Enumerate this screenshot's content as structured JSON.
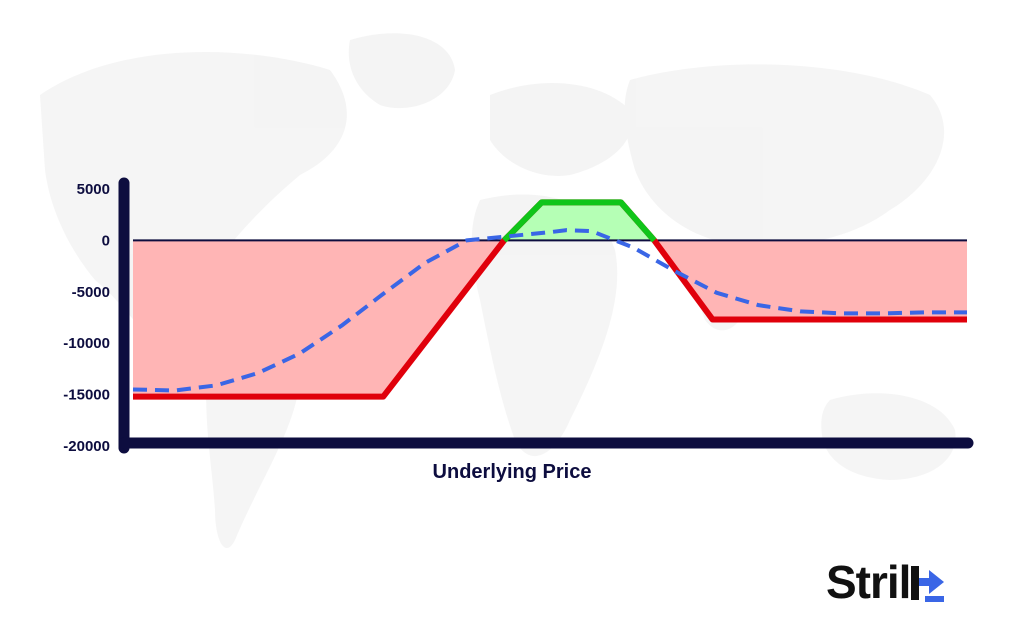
{
  "chart_data": {
    "type": "line",
    "title": "",
    "xlabel": "Underlying Price",
    "ylabel": "",
    "ylim": [
      -20000,
      5000
    ],
    "yticks": [
      5000,
      0,
      -5000,
      -10000,
      -15000,
      -20000
    ],
    "ytick_labels": [
      "5000",
      "0",
      "-5000",
      "-10000",
      "-15000",
      "-20000"
    ],
    "xlim": [
      0,
      100
    ],
    "grid": false,
    "legend": "none",
    "series": [
      {
        "style": "solid",
        "color": "#e0000b",
        "x": [
          0,
          30,
          44.5,
          49,
          58.5,
          62.5,
          69.5,
          100
        ],
        "y": [
          -15200,
          -15200,
          0,
          3700,
          3700,
          0,
          -7700,
          -7700
        ]
      },
      {
        "style": "dashed",
        "color": "#3a66e6",
        "x": [
          0,
          5,
          10,
          15,
          20,
          25,
          30,
          35,
          40,
          45,
          50,
          52,
          55,
          60,
          65,
          70,
          75,
          80,
          85,
          90,
          95,
          100
        ],
        "y": [
          -14500,
          -14600,
          -14100,
          -12900,
          -11000,
          -8300,
          -5200,
          -2200,
          0,
          400,
          800,
          1000,
          900,
          -700,
          -3000,
          -5100,
          -6300,
          -6900,
          -7100,
          -7100,
          -7000,
          -7000
        ]
      }
    ],
    "fills": {
      "loss_color": "#ffb5b5",
      "profit_color": "#b5ffb5"
    },
    "colors": {
      "axis": "#0d0d3f",
      "payoff": "#e0000b",
      "profit_outline": "#10c51a",
      "dashed": "#3a66e6"
    }
  },
  "logo": {
    "text": "Stril",
    "mark_color": "#3a66e6",
    "text_color": "#111111"
  }
}
